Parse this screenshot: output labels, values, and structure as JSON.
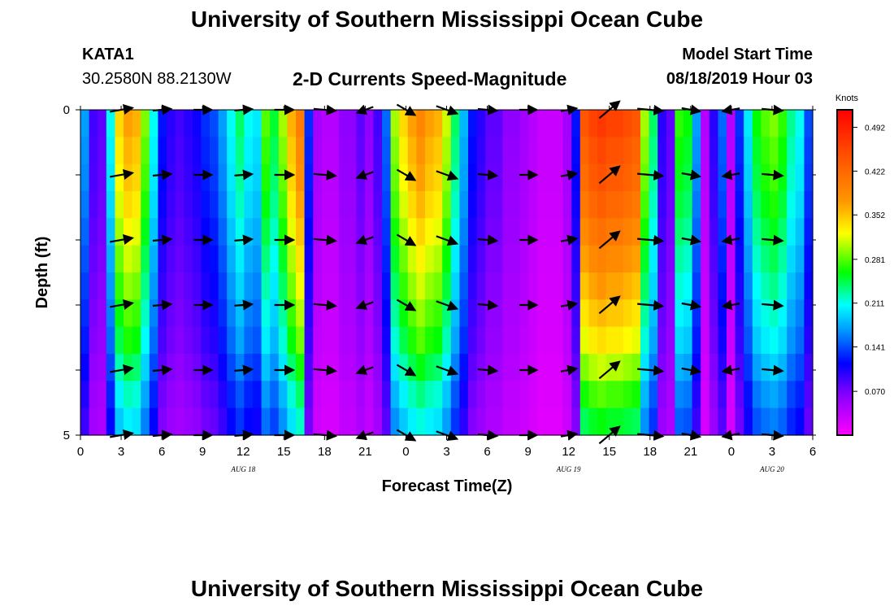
{
  "header": {
    "title": "University of Southern Mississippi Ocean Cube",
    "station_id": "KATA1",
    "coordinates": "30.2580N 88.2130W",
    "plot_title": "2-D Currents Speed-Magnitude",
    "model_start_label": "Model Start Time",
    "model_start_time": "08/18/2019 Hour 03"
  },
  "footer": {
    "title": "University of Southern Mississippi Ocean Cube"
  },
  "chart_data": {
    "type": "heatmap",
    "title": "2-D Currents Speed-Magnitude",
    "xlabel": "Forecast Time(Z)",
    "ylabel": "Depth (ft)",
    "x_tick_labels": [
      "0",
      "3",
      "6",
      "9",
      "12",
      "15",
      "18",
      "21",
      "0",
      "3",
      "6",
      "9",
      "12",
      "15",
      "18",
      "21",
      "0",
      "3",
      "6"
    ],
    "date_labels": [
      {
        "label": "AUG 18",
        "hour": 12
      },
      {
        "label": "AUG 19",
        "hour": 36
      },
      {
        "label": "AUG 20",
        "hour": 51
      }
    ],
    "x_range_hours": [
      0,
      54
    ],
    "y_range_ft": [
      0,
      5
    ],
    "y_tick_labels": [
      "0",
      "5"
    ],
    "colorbar": {
      "label": "Knots",
      "range": [
        0,
        0.52
      ],
      "ticks": [
        0.07,
        0.141,
        0.211,
        0.281,
        0.352,
        0.422,
        0.492
      ],
      "tick_labels": [
        "0.070",
        "0.141",
        "0.211",
        "0.281",
        "0.352",
        "0.422",
        "0.492"
      ]
    },
    "speed_columns_knots": [
      0.17,
      0.09,
      0.08,
      0.21,
      0.34,
      0.37,
      0.36,
      0.29,
      0.21,
      0.12,
      0.1,
      0.09,
      0.1,
      0.11,
      0.13,
      0.14,
      0.17,
      0.21,
      0.24,
      0.21,
      0.2,
      0.28,
      0.25,
      0.3,
      0.36,
      0.4,
      0.13,
      0.05,
      0.04,
      0.04,
      0.06,
      0.06,
      0.08,
      0.06,
      0.09,
      0.15,
      0.3,
      0.34,
      0.37,
      0.39,
      0.37,
      0.36,
      0.31,
      0.24,
      0.18,
      0.12,
      0.1,
      0.08,
      0.08,
      0.06,
      0.06,
      0.05,
      0.04,
      0.03,
      0.03,
      0.03,
      0.05,
      0.12,
      0.44,
      0.46,
      0.47,
      0.46,
      0.46,
      0.45,
      0.44,
      0.3,
      0.24,
      0.1,
      0.08,
      0.27,
      0.26,
      0.17,
      0.04,
      0.1,
      0.15,
      0.04,
      0.13,
      0.2,
      0.26,
      0.28,
      0.29,
      0.27,
      0.23,
      0.21,
      0.14
    ],
    "depth_factors": [
      1.0,
      0.97,
      0.95,
      0.92,
      0.88,
      0.84,
      0.8,
      0.76,
      0.72,
      0.66,
      0.6,
      0.55
    ],
    "vector_hours": [
      3,
      6,
      9,
      12,
      15,
      18,
      21,
      24,
      27,
      30,
      33,
      36,
      39,
      42,
      45,
      48,
      51
    ],
    "vector_depths_ft": [
      0,
      1,
      2,
      3,
      4,
      5
    ],
    "vector_directions_deg": [
      10,
      5,
      0,
      5,
      0,
      -5,
      -160,
      -30,
      -20,
      -5,
      0,
      10,
      40,
      -5,
      -10,
      -170,
      -5
    ],
    "vector_speeds_knots": [
      0.34,
      0.15,
      0.14,
      0.12,
      0.18,
      0.3,
      0.1,
      0.25,
      0.3,
      0.18,
      0.12,
      0.05,
      0.47,
      0.44,
      0.15,
      0.1,
      0.25
    ]
  }
}
